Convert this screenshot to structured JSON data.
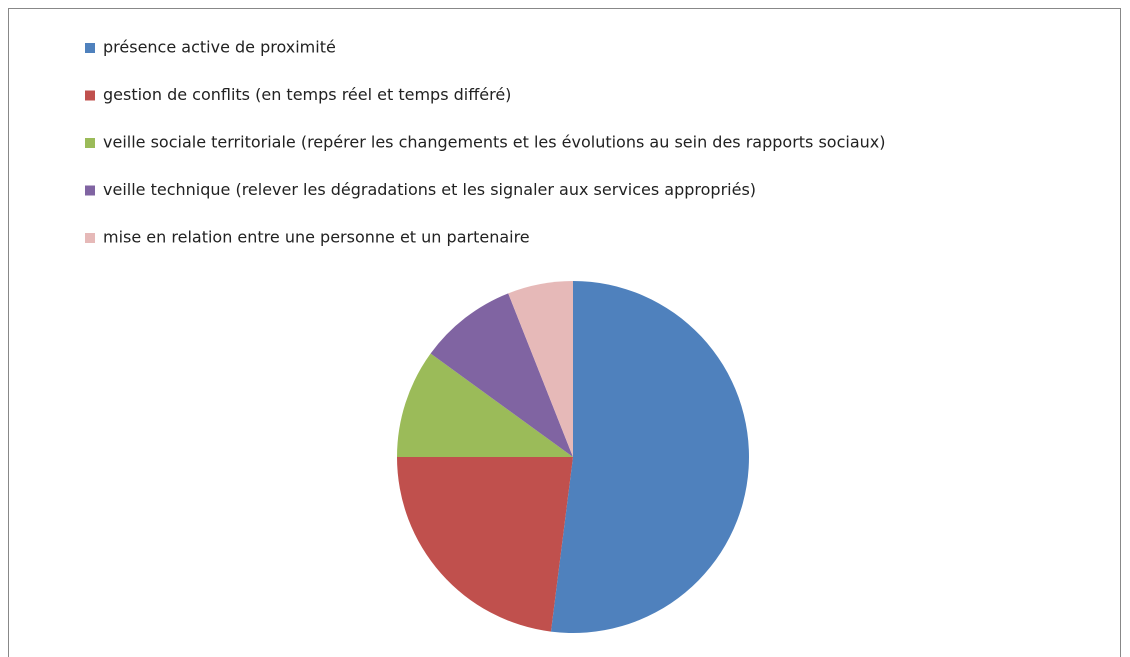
{
  "chart_data": {
    "type": "pie",
    "categories": [
      "présence active de proximité",
      "gestion de conflits (en temps réel et temps différé)",
      "veille sociale territoriale (repérer les changements et les évolutions au sein des rapports sociaux)",
      "veille technique (relever les dégradations et les signaler aux services appropriés)",
      "mise en relation entre une personne et un partenaire"
    ],
    "values": [
      52,
      23,
      10,
      9,
      6
    ],
    "colors": [
      "#4f81bd",
      "#c0504d",
      "#9bbb59",
      "#8064a2",
      "#e6b9b8"
    ],
    "legend": "top-left"
  }
}
